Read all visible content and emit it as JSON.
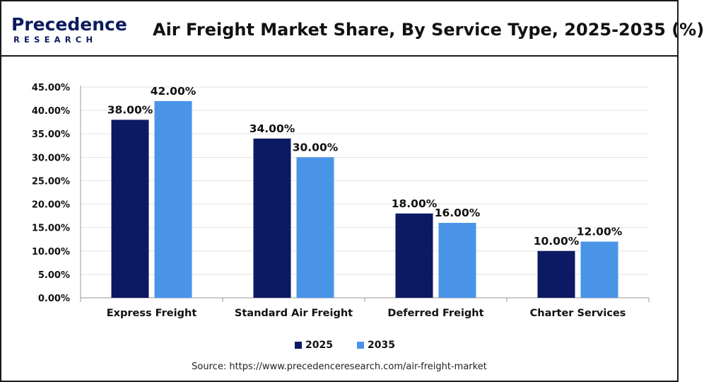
{
  "logo": {
    "top": "Precedence",
    "bottom": "RESEARCH"
  },
  "title": "Air Freight Market Share, By Service Type, 2025-2035 (%)",
  "source": "Source: https://www.precedenceresearch.com/air-freight-market",
  "colors": {
    "s2025": "#0c1a63",
    "s2035": "#4a94e8",
    "grid": "#e3e3e3",
    "axis": "#999999"
  },
  "chart_data": {
    "type": "bar",
    "title": "Air Freight Market Share, By Service Type, 2025-2035 (%)",
    "categories": [
      "Express Freight",
      "Standard Air Freight",
      "Deferred Freight",
      "Charter Services"
    ],
    "series": [
      {
        "name": "2025",
        "values": [
          38,
          34,
          18,
          10
        ],
        "labels": [
          "38.00%",
          "34.00%",
          "18.00%",
          "10.00%"
        ]
      },
      {
        "name": "2035",
        "values": [
          42,
          30,
          16,
          12
        ],
        "labels": [
          "42.00%",
          "30.00%",
          "16.00%",
          "12.00%"
        ]
      }
    ],
    "ylim": [
      0,
      45
    ],
    "yticks": [
      0,
      5,
      10,
      15,
      20,
      25,
      30,
      35,
      40,
      45
    ],
    "yticklabels": [
      "0.00%",
      "5.00%",
      "10.00%",
      "15.00%",
      "20.00%",
      "25.00%",
      "30.00%",
      "35.00%",
      "40.00%",
      "45.00%"
    ],
    "grid": true,
    "legend": "bottom-center"
  }
}
